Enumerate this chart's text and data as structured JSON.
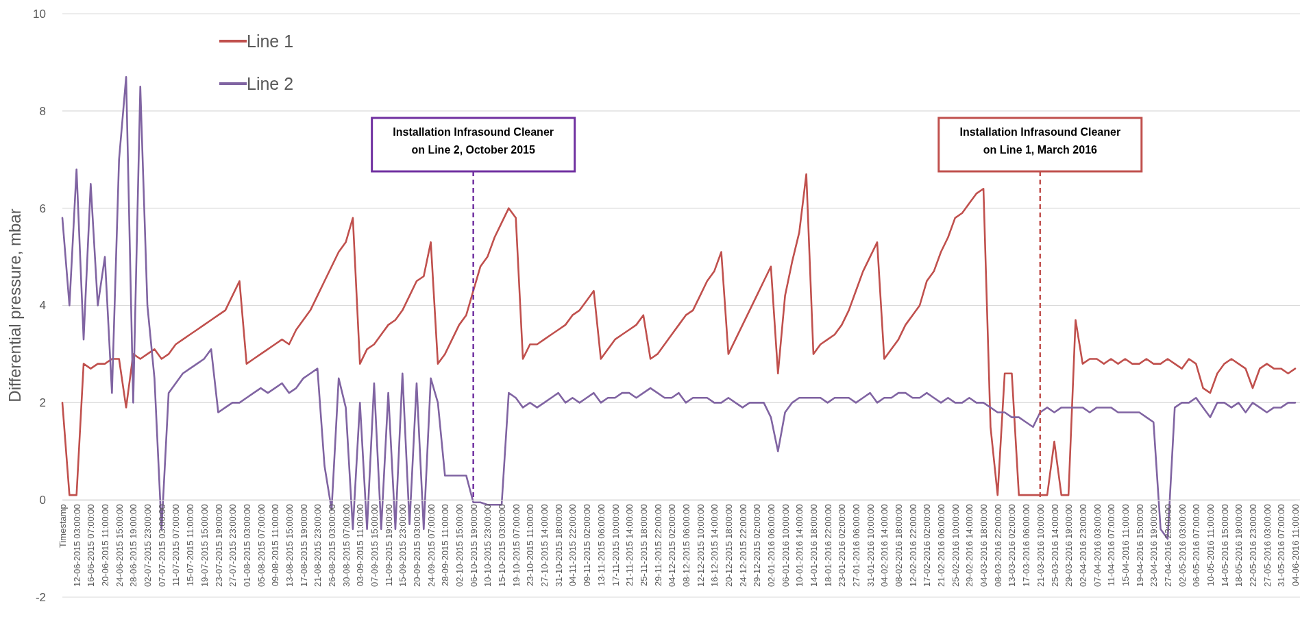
{
  "chart_data": {
    "type": "line",
    "ylabel": "Differential pressure, mbar",
    "categories": [
      "Timestamp",
      null,
      "12-06-2015 03:00:00",
      null,
      "16-06-2015 07:00:00",
      null,
      "20-06-2015 11:00:00",
      null,
      "24-06-2015 15:00:00",
      null,
      "28-06-2015 19:00:00",
      null,
      "02-07-2015 23:00:00",
      null,
      "07-07-2015 03:00:00",
      null,
      "11-07-2015 07:00:00",
      null,
      "15-07-2015 11:00:00",
      null,
      "19-07-2015 15:00:00",
      null,
      "23-07-2015 19:00:00",
      null,
      "27-07-2015 23:00:00",
      null,
      "01-08-2015 03:00:00",
      null,
      "05-08-2015 07:00:00",
      null,
      "09-08-2015 11:00:00",
      null,
      "13-08-2015 15:00:00",
      null,
      "17-08-2015 19:00:00",
      null,
      "21-08-2015 23:00:00",
      null,
      "26-08-2015 03:00:00",
      null,
      "30-08-2015 07:00:00",
      null,
      "03-09-2015 11:00:00",
      null,
      "07-09-2015 15:00:00",
      null,
      "11-09-2015 19:00:00",
      null,
      "15-09-2015 23:00:00",
      null,
      "20-09-2015 03:00:00",
      null,
      "24-09-2015 07:00:00",
      null,
      "28-09-2015 11:00:00",
      null,
      "02-10-2015 15:00:00",
      null,
      "06-10-2015 19:00:00",
      null,
      "10-10-2015 23:00:00",
      null,
      "15-10-2015 03:00:00",
      null,
      "19-10-2015 07:00:00",
      null,
      "23-10-2015 11:00:00",
      null,
      "27-10-2015 14:00:00",
      null,
      "31-10-2015 18:00:00",
      null,
      "04-11-2015 22:00:00",
      null,
      "09-11-2015 02:00:00",
      null,
      "13-11-2015 06:00:00",
      null,
      "17-11-2015 10:00:00",
      null,
      "21-11-2015 14:00:00",
      null,
      "25-11-2015 18:00:00",
      null,
      "29-11-2015 22:00:00",
      null,
      "04-12-2015 02:00:00",
      null,
      "08-12-2015 06:00:00",
      null,
      "12-12-2015 10:00:00",
      null,
      "16-12-2015 14:00:00",
      null,
      "20-12-2015 18:00:00",
      null,
      "24-12-2015 22:00:00",
      null,
      "29-12-2015 02:00:00",
      null,
      "02-01-2016 06:00:00",
      null,
      "06-01-2016 10:00:00",
      null,
      "10-01-2016 14:00:00",
      null,
      "14-01-2016 18:00:00",
      null,
      "18-01-2016 22:00:00",
      null,
      "23-01-2016 02:00:00",
      null,
      "27-01-2016 06:00:00",
      null,
      "31-01-2016 10:00:00",
      null,
      "04-02-2016 14:00:00",
      null,
      "08-02-2016 18:00:00",
      null,
      "12-02-2016 22:00:00",
      null,
      "17-02-2016 02:00:00",
      null,
      "21-02-2016 06:00:00",
      null,
      "25-02-2016 10:00:00",
      null,
      "29-02-2016 14:00:00",
      null,
      "04-03-2016 18:00:00",
      null,
      "08-03-2016 22:00:00",
      null,
      "13-03-2016 02:00:00",
      null,
      "17-03-2016 06:00:00",
      null,
      "21-03-2016 10:00:00",
      null,
      "25-03-2016 14:00:00",
      null,
      "29-03-2016 19:00:00",
      null,
      "02-04-2016 23:00:00",
      null,
      "07-04-2016 03:00:00",
      null,
      "11-04-2016 07:00:00",
      null,
      "15-04-2016 11:00:00",
      null,
      "19-04-2016 15:00:00",
      null,
      "23-04-2016 19:00:00",
      null,
      "27-04-2016 23:00:00",
      null,
      "02-05-2016 03:00:00",
      null,
      "06-05-2016 07:00:00",
      null,
      "10-05-2016 11:00:00",
      null,
      "14-05-2016 15:00:00",
      null,
      "18-05-2016 19:00:00",
      null,
      "22-05-2016 23:00:00",
      null,
      "27-05-2016 03:00:00",
      null,
      "31-05-2016 07:00:00",
      null,
      "04-06-2016 11:00:00"
    ],
    "series": [
      {
        "name": "Line 1",
        "color": "#c0504d",
        "values": [
          2.0,
          0.1,
          0.1,
          2.8,
          2.7,
          2.8,
          2.8,
          2.9,
          2.9,
          1.9,
          3.0,
          2.9,
          3.0,
          3.1,
          2.9,
          3.0,
          3.2,
          3.3,
          3.4,
          3.5,
          3.6,
          3.7,
          3.8,
          3.9,
          4.2,
          4.5,
          2.8,
          2.9,
          3.0,
          3.1,
          3.2,
          3.3,
          3.2,
          3.5,
          3.7,
          3.9,
          4.2,
          4.5,
          4.8,
          5.1,
          5.3,
          5.8,
          2.8,
          3.1,
          3.2,
          3.4,
          3.6,
          3.7,
          3.9,
          4.2,
          4.5,
          4.6,
          5.3,
          2.8,
          3.0,
          3.3,
          3.6,
          3.8,
          4.3,
          4.8,
          5.0,
          5.4,
          5.7,
          6.0,
          5.8,
          2.9,
          3.2,
          3.2,
          3.3,
          3.4,
          3.5,
          3.6,
          3.8,
          3.9,
          4.1,
          4.3,
          2.9,
          3.1,
          3.3,
          3.4,
          3.5,
          3.6,
          3.8,
          2.9,
          3.0,
          3.2,
          3.4,
          3.6,
          3.8,
          3.9,
          4.2,
          4.5,
          4.7,
          5.1,
          3.0,
          3.3,
          3.6,
          3.9,
          4.2,
          4.5,
          4.8,
          2.6,
          4.2,
          4.9,
          5.5,
          6.7,
          3.0,
          3.2,
          3.3,
          3.4,
          3.6,
          3.9,
          4.3,
          4.7,
          5.0,
          5.3,
          2.9,
          3.1,
          3.3,
          3.6,
          3.8,
          4.0,
          4.5,
          4.7,
          5.1,
          5.4,
          5.8,
          5.9,
          6.1,
          6.3,
          6.4,
          1.5,
          0.1,
          2.6,
          2.6,
          0.1,
          0.1,
          0.1,
          0.1,
          0.1,
          1.2,
          0.1,
          0.1,
          3.7,
          2.8,
          2.9,
          2.9,
          2.8,
          2.9,
          2.8,
          2.9,
          2.8,
          2.8,
          2.9,
          2.8,
          2.8,
          2.9,
          2.8,
          2.7,
          2.9,
          2.8,
          2.3,
          2.2,
          2.6,
          2.8,
          2.9,
          2.8,
          2.7,
          2.3,
          2.7,
          2.8,
          2.7,
          2.7,
          2.6,
          2.7
        ]
      },
      {
        "name": "Line 2",
        "color": "#8064a2",
        "values": [
          5.8,
          4.0,
          6.8,
          3.3,
          6.5,
          4.0,
          5.0,
          2.2,
          7.0,
          8.7,
          2.0,
          8.5,
          4.0,
          2.5,
          -0.6,
          2.2,
          2.4,
          2.6,
          2.7,
          2.8,
          2.9,
          3.1,
          1.8,
          1.9,
          2.0,
          2.0,
          2.1,
          2.2,
          2.3,
          2.2,
          2.3,
          2.4,
          2.2,
          2.3,
          2.5,
          2.6,
          2.7,
          0.7,
          -0.2,
          2.5,
          1.9,
          -0.6,
          2.0,
          -0.6,
          2.4,
          -0.6,
          2.2,
          -0.6,
          2.6,
          -0.5,
          2.4,
          -0.6,
          2.5,
          2.0,
          0.5,
          0.5,
          0.5,
          0.5,
          -0.05,
          -0.05,
          -0.1,
          -0.1,
          -0.1,
          2.2,
          2.1,
          1.9,
          2.0,
          1.9,
          2.0,
          2.1,
          2.2,
          2.0,
          2.1,
          2.0,
          2.1,
          2.2,
          2.0,
          2.1,
          2.1,
          2.2,
          2.2,
          2.1,
          2.2,
          2.3,
          2.2,
          2.1,
          2.1,
          2.2,
          2.0,
          2.1,
          2.1,
          2.1,
          2.0,
          2.0,
          2.1,
          2.0,
          1.9,
          2.0,
          2.0,
          2.0,
          1.7,
          1.0,
          1.8,
          2.0,
          2.1,
          2.1,
          2.1,
          2.1,
          2.0,
          2.1,
          2.1,
          2.1,
          2.0,
          2.1,
          2.2,
          2.0,
          2.1,
          2.1,
          2.2,
          2.2,
          2.1,
          2.1,
          2.2,
          2.1,
          2.0,
          2.1,
          2.0,
          2.0,
          2.1,
          2.0,
          2.0,
          1.9,
          1.8,
          1.8,
          1.7,
          1.7,
          1.6,
          1.5,
          1.8,
          1.9,
          1.8,
          1.9,
          1.9,
          1.9,
          1.9,
          1.8,
          1.9,
          1.9,
          1.9,
          1.8,
          1.8,
          1.8,
          1.8,
          1.7,
          1.6,
          -0.6,
          -0.8,
          1.9,
          2.0,
          2.0,
          2.1,
          1.9,
          1.7,
          2.0,
          2.0,
          1.9,
          2.0,
          1.8,
          2.0,
          1.9,
          1.8,
          1.9,
          1.9,
          2.0,
          2.0
        ]
      }
    ],
    "ylim": [
      -2,
      10
    ],
    "yticks": [
      -2,
      0,
      2,
      4,
      6,
      8,
      10
    ],
    "grid": "y",
    "legend": "top left",
    "line_style": "solid",
    "marker": "none",
    "ref_lines": [
      {
        "axis": "x",
        "value": "06-10-2015 19:00:00",
        "label": "Installation Infrasound Cleaner\non Line 2, October 2015",
        "color": "#7030a0",
        "line_style": "dashed"
      },
      {
        "axis": "x",
        "value": "21-03-2016 10:00:00",
        "label": "Installation Infrasound Cleaner\non Line 1, March 2016",
        "color": "#c0504d",
        "line_style": "dashed"
      }
    ]
  }
}
